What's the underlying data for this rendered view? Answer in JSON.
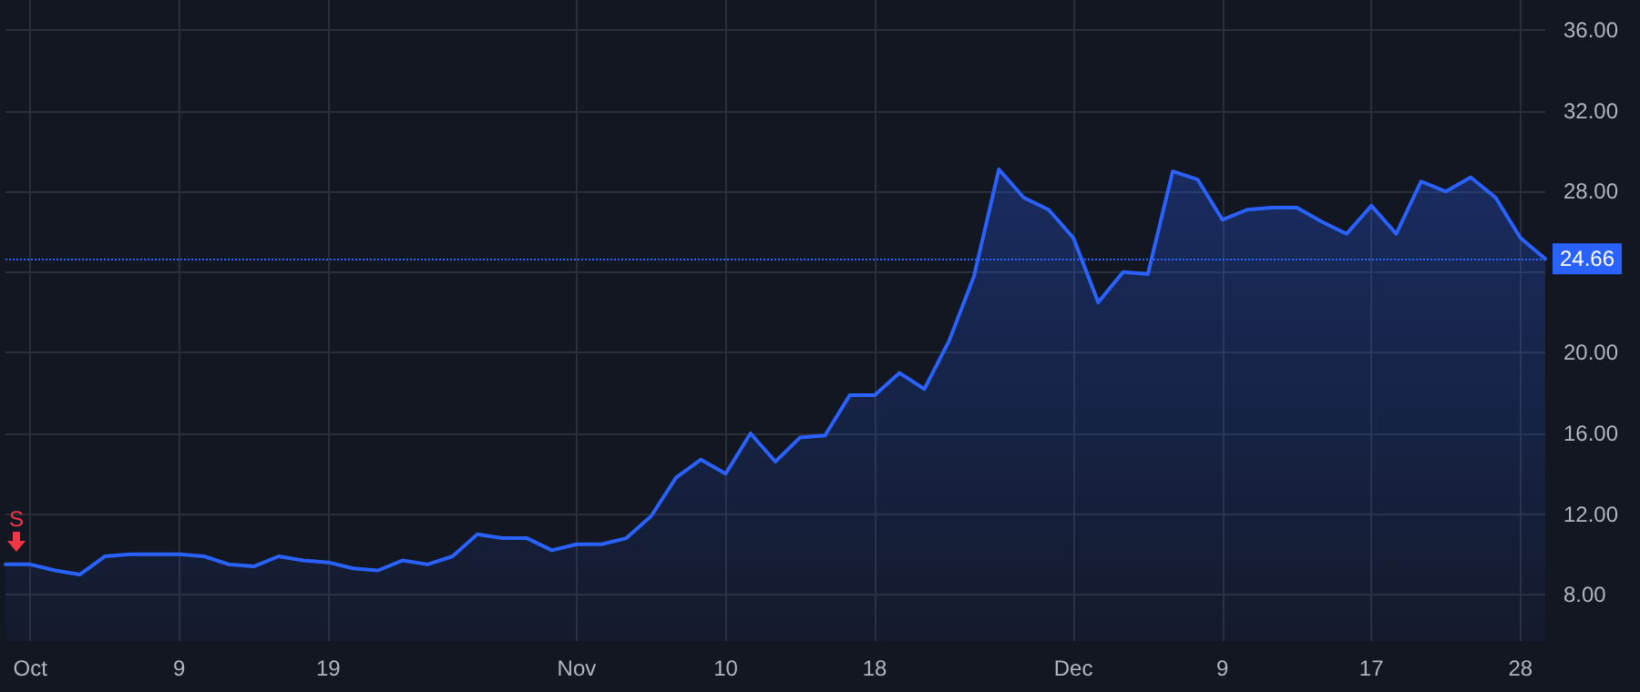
{
  "chart_data": {
    "type": "area",
    "categories": [
      null,
      "Oct",
      null,
      null,
      null,
      null,
      null,
      "9",
      null,
      null,
      null,
      null,
      null,
      "19",
      null,
      null,
      null,
      null,
      null,
      null,
      null,
      null,
      null,
      "Nov",
      null,
      null,
      null,
      null,
      null,
      "10",
      null,
      null,
      null,
      null,
      null,
      "18",
      null,
      null,
      null,
      null,
      null,
      null,
      null,
      "Dec",
      null,
      null,
      null,
      null,
      null,
      "9",
      null,
      null,
      null,
      null,
      null,
      "17",
      null,
      null,
      null,
      null,
      null,
      "28",
      null
    ],
    "series": [
      {
        "color": "#2962ff",
        "values": [
          9.5,
          9.5,
          9.2,
          9.0,
          9.9,
          10.0,
          10.0,
          10.0,
          9.9,
          9.5,
          9.4,
          9.9,
          9.7,
          9.6,
          9.3,
          9.2,
          9.7,
          9.5,
          9.9,
          11.0,
          10.8,
          10.8,
          10.2,
          10.5,
          10.5,
          10.8,
          11.9,
          13.8,
          14.7,
          14.0,
          16.0,
          14.6,
          15.8,
          15.9,
          17.9,
          17.9,
          19.0,
          18.2,
          20.6,
          23.8,
          29.1,
          27.7,
          27.1,
          25.7,
          22.5,
          24.0,
          23.9,
          29.0,
          28.6,
          26.6,
          27.1,
          27.2,
          27.2,
          26.5,
          25.9,
          27.3,
          25.9,
          28.5,
          28.0,
          28.7,
          27.7,
          25.7,
          24.66
        ]
      }
    ],
    "ylim": [
      5.7,
      37.5
    ],
    "yticks": [
      {
        "value": 8,
        "label": "8.00"
      },
      {
        "value": 12,
        "label": "12.00"
      },
      {
        "value": 16,
        "label": "16.00"
      },
      {
        "value": 20,
        "label": "20.00"
      },
      {
        "value": 24,
        "label": null
      },
      {
        "value": 28,
        "label": "28.00"
      },
      {
        "value": 32,
        "label": "32.00"
      },
      {
        "value": 36,
        "label": "36.00"
      }
    ],
    "ref_lines": [
      {
        "axis": "y",
        "value": 24.66,
        "label": "24.66",
        "color": "#2962ff",
        "line_style": "dotted"
      }
    ],
    "annotations": [
      {
        "text": "S",
        "y": 9.5
      }
    ],
    "grid": true,
    "marker": "none",
    "line_style": "solid"
  }
}
